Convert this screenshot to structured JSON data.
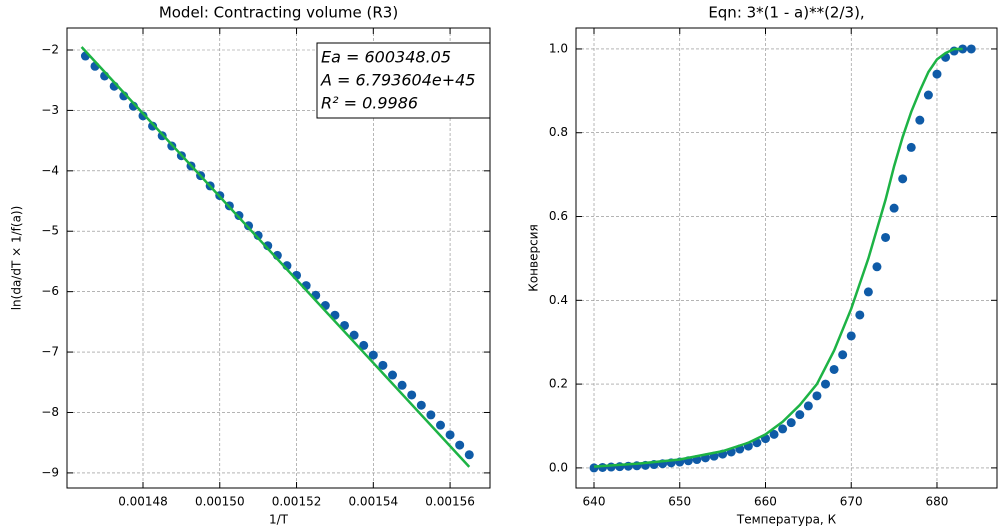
{
  "chart_data": [
    {
      "type": "scatter",
      "title": "Model: Contracting volume (R3)",
      "xlabel": "1/T",
      "ylabel": "ln(da/dT × 1/f(a))",
      "annotations": [
        "Ea = 600348.05",
        "A = 6.793604e+45",
        "R² = 0.9986"
      ],
      "xlim": [
        0.0014602,
        0.0015704
      ],
      "ylim": [
        -9.25,
        -1.636
      ],
      "xticks": [
        0.00148,
        0.0015,
        0.00152,
        0.00154,
        0.00156
      ],
      "xtick_labels": [
        "0.00148",
        "0.00150",
        "0.00152",
        "0.00154",
        "0.00156"
      ],
      "yticks": [
        {
          "value": -9,
          "label": "−9"
        },
        {
          "value": -8,
          "label": "−8"
        },
        {
          "value": -7,
          "label": "−7"
        },
        {
          "value": -6,
          "label": "−6"
        },
        {
          "value": -5,
          "label": "−5"
        },
        {
          "value": -4,
          "label": "−4"
        },
        {
          "value": -3,
          "label": "−3"
        },
        {
          "value": -2,
          "label": "−2"
        }
      ],
      "grid": true,
      "series": [
        {
          "kind": "scatter",
          "color": "#0f5ba7",
          "x": [
            0.001465,
            0.0014675,
            0.00147,
            0.0014725,
            0.001475,
            0.0014775,
            0.00148,
            0.0014825,
            0.001485,
            0.0014875,
            0.00149,
            0.0014925,
            0.001495,
            0.0014975,
            0.0015,
            0.0015025,
            0.001505,
            0.0015075,
            0.00151,
            0.0015125,
            0.001515,
            0.0015175,
            0.00152,
            0.0015225,
            0.001525,
            0.0015275,
            0.00153,
            0.0015325,
            0.001535,
            0.0015375,
            0.00154,
            0.0015425,
            0.001545,
            0.0015475,
            0.00155,
            0.0015525,
            0.001555,
            0.0015575,
            0.00156,
            0.0015625,
            0.001565
          ],
          "values": [
            -2.1,
            -2.27,
            -2.43,
            -2.6,
            -2.76,
            -2.93,
            -3.09,
            -3.26,
            -3.42,
            -3.59,
            -3.75,
            -3.92,
            -4.08,
            -4.25,
            -4.41,
            -4.58,
            -4.74,
            -4.91,
            -5.07,
            -5.24,
            -5.4,
            -5.57,
            -5.73,
            -5.9,
            -6.06,
            -6.23,
            -6.39,
            -6.56,
            -6.72,
            -6.89,
            -7.05,
            -7.22,
            -7.38,
            -7.55,
            -7.71,
            -7.88,
            -8.04,
            -8.21,
            -8.37,
            -8.54,
            -8.7
          ]
        },
        {
          "kind": "line",
          "color": "#1db345",
          "x": [
            0.001464,
            0.001565
          ],
          "values": [
            -1.95,
            -8.9
          ]
        }
      ]
    },
    {
      "type": "scatter",
      "title": "Eqn: 3*(1 - a)**(2/3),",
      "xlabel": "Температура, К",
      "ylabel": "Конверсия",
      "xlim": [
        637.9,
        687.0
      ],
      "ylim": [
        -0.048,
        1.05
      ],
      "xticks": [
        640,
        650,
        660,
        670,
        680
      ],
      "yticks": [
        {
          "value": 0,
          "label": "0.0"
        },
        0.2,
        0.4,
        0.6,
        0.8,
        {
          "value": 1,
          "label": "1.0"
        }
      ],
      "grid": true,
      "series": [
        {
          "kind": "scatter",
          "color": "#0f5ba7",
          "x": [
            640,
            641,
            642,
            643,
            644,
            645,
            646,
            647,
            648,
            649,
            650,
            651,
            652,
            653,
            654,
            655,
            656,
            657,
            658,
            659,
            660,
            661,
            662,
            663,
            664,
            665,
            666,
            667,
            668,
            669,
            670,
            671,
            672,
            673,
            674,
            675,
            676,
            677,
            678,
            679,
            680,
            681,
            682,
            683,
            684
          ],
          "values": [
            0,
            0.001,
            0.002,
            0.003,
            0.004,
            0.005,
            0.006,
            0.008,
            0.01,
            0.012,
            0.014,
            0.017,
            0.02,
            0.024,
            0.028,
            0.033,
            0.038,
            0.045,
            0.052,
            0.06,
            0.07,
            0.08,
            0.093,
            0.108,
            0.127,
            0.148,
            0.172,
            0.2,
            0.235,
            0.27,
            0.315,
            0.365,
            0.42,
            0.48,
            0.55,
            0.62,
            0.69,
            0.765,
            0.83,
            0.89,
            0.94,
            0.98,
            0.995,
            1.0,
            1.0
          ]
        },
        {
          "kind": "line",
          "color": "#1db345",
          "x": [
            640,
            645,
            650,
            655,
            658,
            660,
            662,
            664,
            666,
            668,
            670,
            672,
            674,
            675,
            676,
            677,
            678,
            679,
            680,
            681,
            682,
            683
          ],
          "values": [
            0.003,
            0.01,
            0.02,
            0.04,
            0.06,
            0.08,
            0.11,
            0.15,
            0.2,
            0.28,
            0.38,
            0.5,
            0.64,
            0.72,
            0.79,
            0.85,
            0.9,
            0.945,
            0.975,
            0.99,
            1.0,
            1.0
          ]
        }
      ]
    }
  ]
}
